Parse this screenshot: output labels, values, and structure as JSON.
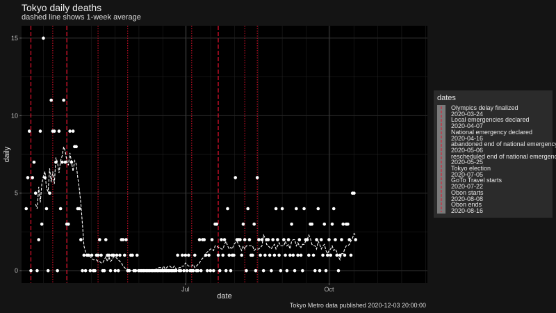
{
  "chart_data": {
    "type": "scatter",
    "title": "Tokyo daily deaths",
    "subtitle": "dashed line shows 1-week average",
    "xlabel": "date",
    "ylabel": "daily",
    "caption": "Tokyo Metro data published 2020-12-03 20:00:00",
    "x_range": [
      "2020-03-18",
      "2020-12-03"
    ],
    "ylim": [
      -0.8,
      15.8
    ],
    "x_ticks": [
      {
        "date": "2020-07-01",
        "label": "Jul"
      },
      {
        "date": "2020-10-01",
        "label": "Oct"
      }
    ],
    "y_ticks": [
      0,
      5,
      10,
      15
    ],
    "grid": true,
    "legend_position": "right",
    "colors": {
      "points": "#ffffff",
      "average": "#ffffff",
      "event_lines": "#e8112d",
      "panel": "#000000",
      "grid": "#3a3a3a"
    },
    "legend": {
      "title": "dates",
      "entries": [
        {
          "label": "Olympics delay finalized",
          "date": "2020-03-24",
          "linestyle": "dashed"
        },
        {
          "label": "Local emergencies declared",
          "date": "2020-04-07",
          "linestyle": "dotted"
        },
        {
          "label": "National emergency declared",
          "date": "2020-04-16",
          "linestyle": "dashed"
        },
        {
          "label": "abandoned end of national emergency",
          "date": "2020-05-06",
          "linestyle": "dotted"
        },
        {
          "label": "rescheduled end of national emergency",
          "date": "2020-05-25",
          "linestyle": "dotted"
        },
        {
          "label": "Tokyo election",
          "date": "2020-07-05",
          "linestyle": "dotted"
        },
        {
          "label": "GoTo Travel starts",
          "date": "2020-07-22",
          "linestyle": "dashed"
        },
        {
          "label": "Obon starts",
          "date": "2020-08-08",
          "linestyle": "dotted"
        },
        {
          "label": "Obon ends",
          "date": "2020-08-16",
          "linestyle": "dotted"
        }
      ]
    },
    "series": [
      {
        "kind": "daily",
        "values": [
          [
            4,
            6,
            9,
            0,
            6,
            7,
            5,
            0,
            2,
            9,
            3,
            15,
            6,
            4,
            0,
            5,
            11,
            9,
            9,
            7,
            0,
            9,
            4,
            7,
            11,
            7,
            3,
            3,
            9,
            7,
            9,
            8,
            8,
            4,
            4
          ],
          [
            2,
            0,
            1,
            0,
            1,
            1,
            0,
            1,
            0,
            0,
            1,
            1,
            2,
            1,
            0,
            0,
            2,
            1,
            1,
            0,
            1,
            1,
            0,
            1,
            0,
            1,
            2,
            2,
            1,
            2,
            0,
            0,
            1,
            1,
            0,
            0,
            1,
            0,
            0
          ],
          [
            0,
            0,
            0,
            0,
            0,
            0,
            0,
            0,
            0,
            0,
            0,
            0,
            0,
            0,
            0,
            0,
            0,
            0,
            0,
            0,
            0,
            0,
            0,
            1,
            0,
            0,
            1,
            0,
            1,
            0,
            1,
            0,
            0,
            0,
            1,
            0,
            0,
            2,
            0
          ],
          [
            2,
            2,
            1,
            0,
            1,
            0,
            2,
            0,
            3,
            3,
            1,
            0,
            2,
            1,
            2,
            0,
            4,
            1,
            0,
            1,
            1,
            6,
            2,
            2,
            2,
            1,
            3,
            2,
            0,
            4,
            2,
            1,
            1,
            3,
            0,
            6,
            2,
            1,
            2,
            0,
            1,
            2,
            2,
            1,
            0,
            2,
            1,
            4,
            2,
            1,
            0,
            4,
            2,
            1,
            0,
            2,
            1,
            3,
            1,
            0,
            4,
            1,
            2,
            1,
            0,
            4,
            2,
            2,
            1,
            3,
            3,
            1,
            0,
            2,
            4,
            0,
            2,
            1,
            3,
            0,
            1,
            2,
            1,
            3,
            4,
            2,
            1,
            0,
            1,
            2,
            3,
            1,
            3,
            3,
            2,
            1,
            5,
            5,
            2
          ]
        ],
        "start": "2020-03-21"
      },
      {
        "kind": "1-week average",
        "linestyle": "dashed",
        "start": "2020-03-27",
        "values": [
          4.3,
          4.0,
          5.4,
          4.4,
          5.6,
          6.1,
          6.4,
          5.3,
          5.1,
          6.6,
          5.7,
          6.4,
          5.6,
          7.3,
          7.0,
          6.3,
          7.1,
          7.4,
          8.0,
          7.7,
          7.1,
          6.8,
          7.6,
          7.0,
          6.4,
          7.1,
          6.9,
          6.0,
          5.3,
          4.3,
          3.0,
          1.6,
          1.2,
          1.0,
          1.0,
          0.9,
          0.8,
          0.7,
          0.7,
          0.7,
          0.6,
          0.6,
          0.5,
          0.5,
          0.7,
          0.9,
          0.6,
          0.9,
          0.6,
          0.7,
          0.9,
          0.9,
          0.8,
          0.7,
          0.6,
          0.5,
          0.3,
          0.2,
          0.1,
          0.1,
          0.0,
          0.0,
          0.0,
          0.0,
          0.0,
          0.0,
          0.0,
          0.0,
          0.0,
          0.0,
          0.0,
          0.0,
          0.0,
          0.0,
          0.0,
          0.0,
          0.0,
          0.1,
          0.1,
          0.2,
          0.2,
          0.1,
          0.3,
          0.1,
          0.2,
          0.3,
          0.3,
          0.2,
          0.2,
          0.3,
          0.1,
          0.1,
          0.2,
          0.2,
          0.3,
          0.3,
          0.5,
          0.4,
          0.3,
          0.3,
          0.3,
          0.4,
          0.2,
          0.3,
          0.4,
          0.5,
          0.7,
          0.8,
          0.9,
          1.1,
          1.2,
          1.3,
          1.4,
          1.4,
          1.3,
          1.6,
          1.6,
          1.5,
          1.5,
          1.4,
          1.4,
          1.7,
          1.9,
          1.6,
          1.4,
          1.5,
          1.4,
          1.7,
          1.8,
          1.9,
          1.7,
          1.5,
          1.3,
          1.6,
          1.4,
          1.6,
          1.6,
          1.6,
          1.6,
          1.6,
          1.3,
          1.4,
          1.4,
          1.4,
          1.5,
          1.6,
          2.3,
          2.1,
          1.7,
          1.6,
          1.5,
          1.4,
          1.6,
          1.7,
          1.4,
          1.6,
          1.8,
          1.6,
          1.6,
          1.6,
          1.9,
          1.6,
          1.7,
          1.4,
          1.9,
          2.0,
          2.0,
          1.6,
          1.8,
          1.6,
          1.5,
          1.7,
          1.7,
          1.9,
          2.0,
          2.3,
          2.1,
          1.7,
          1.6,
          1.6,
          1.4,
          1.9,
          1.7,
          1.4,
          1.6,
          1.7,
          1.3,
          1.1,
          1.3,
          1.4,
          1.6,
          1.3,
          1.4,
          1.2,
          0.9,
          0.7,
          1.1,
          1.1,
          1.4,
          1.6,
          1.6,
          1.7,
          1.9,
          2.1,
          2.4,
          2.3
        ]
      }
    ]
  }
}
